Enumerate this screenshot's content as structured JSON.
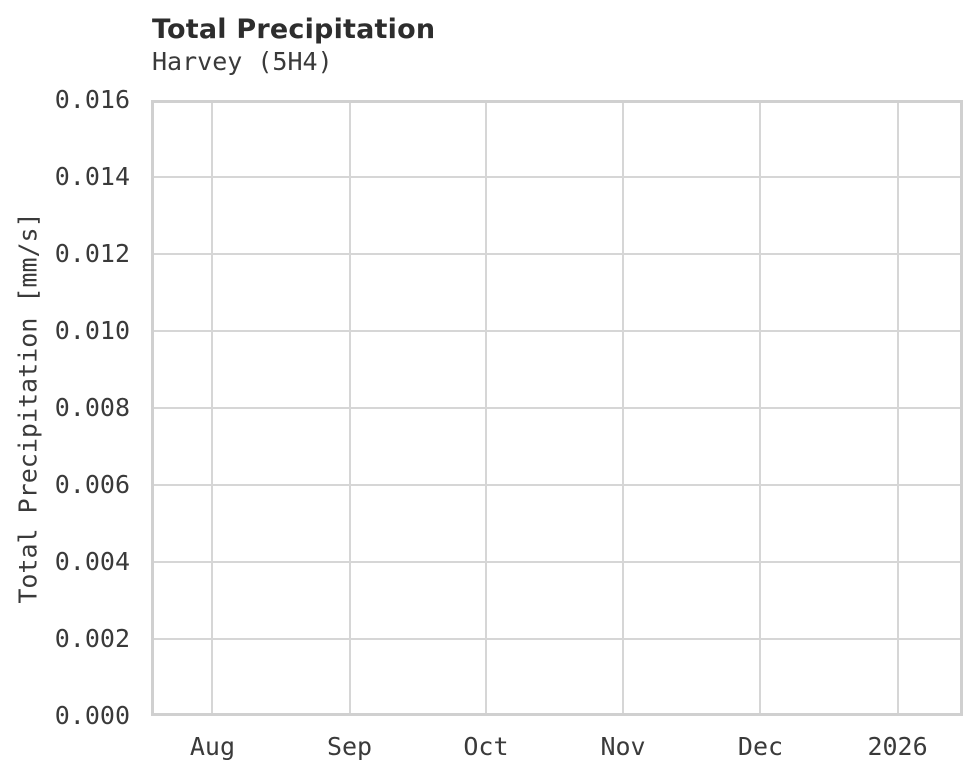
{
  "chart_data": {
    "type": "line",
    "title": "Total Precipitation",
    "subtitle": "Harvey (5H4)",
    "xlabel": "",
    "ylabel": "Total Precipitation [mm/s]",
    "x_ticks": [
      "Aug",
      "Sep",
      "Oct",
      "Nov",
      "Dec",
      "2026"
    ],
    "x_tick_positions": [
      0.0757,
      0.2445,
      0.4125,
      0.5813,
      0.7506,
      0.9194
    ],
    "y_ticks": [
      "0.000",
      "0.002",
      "0.004",
      "0.006",
      "0.008",
      "0.010",
      "0.012",
      "0.014",
      "0.016"
    ],
    "ylim": [
      0.0,
      0.016
    ],
    "y_tick_step": 0.002,
    "grid": true,
    "legend_position": "none",
    "series": [],
    "colors": {
      "grid": "#d6d6d6",
      "axis_border": "#d0d0d0",
      "title_text": "#2d2d2d",
      "label_text": "#3a3a3a",
      "background": "#ffffff"
    }
  }
}
